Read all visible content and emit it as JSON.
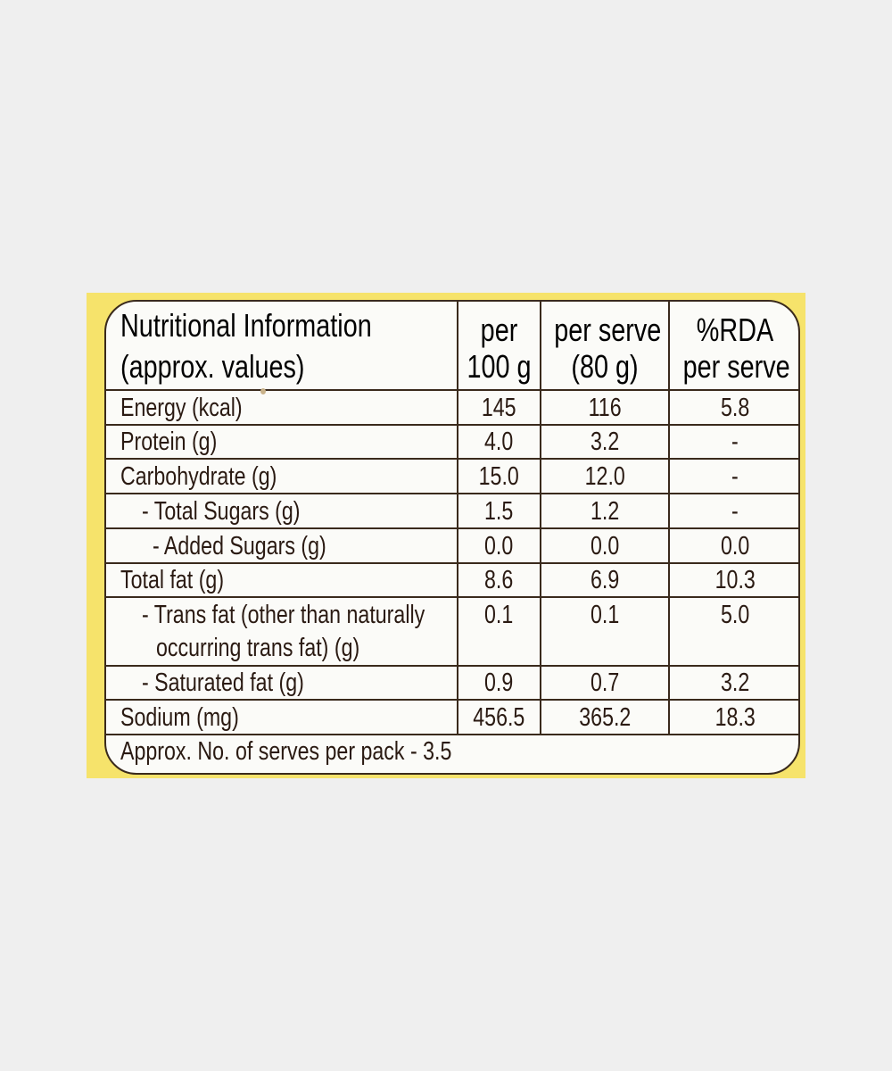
{
  "panel": {
    "title_line1": "Nutritional Information",
    "title_line2": "(approx. values)"
  },
  "columns": {
    "per100_line1": "per",
    "per100_line2": "100 g",
    "perserve_line1": "per serve",
    "perserve_line2": "(80 g)",
    "rda_line1": "%RDA",
    "rda_line2": "per serve"
  },
  "rows": [
    {
      "label": "Energy (kcal)",
      "per100": "145",
      "perserve": "116",
      "rda": "5.8"
    },
    {
      "label": "Protein (g)",
      "per100": "4.0",
      "perserve": "3.2",
      "rda": "-"
    },
    {
      "label": "Carbohydrate (g)",
      "per100": "15.0",
      "perserve": "12.0",
      "rda": "-"
    },
    {
      "label": "- Total Sugars (g)",
      "per100": "1.5",
      "perserve": "1.2",
      "rda": "-"
    },
    {
      "label": "- Added Sugars (g)",
      "per100": "0.0",
      "perserve": "0.0",
      "rda": "0.0"
    },
    {
      "label": "Total fat (g)",
      "per100": "8.6",
      "perserve": "6.9",
      "rda": "10.3"
    },
    {
      "label": "- Trans fat (other than naturally",
      "label_line2": "occurring trans fat) (g)",
      "per100": "0.1",
      "perserve": "0.1",
      "rda": "5.0"
    },
    {
      "label": "- Saturated fat (g)",
      "per100": "0.9",
      "perserve": "0.7",
      "rda": "3.2"
    },
    {
      "label": "Sodium (mg)",
      "per100": "456.5",
      "perserve": "365.2",
      "rda": "18.3"
    }
  ],
  "footer": {
    "serves_text": "Approx. No. of serves per pack - 3.5"
  },
  "colors": {
    "background": "#efefef",
    "card_yellow": "#f6e36b",
    "panel": "#fbfbf8",
    "ink": "#2a1a12"
  }
}
